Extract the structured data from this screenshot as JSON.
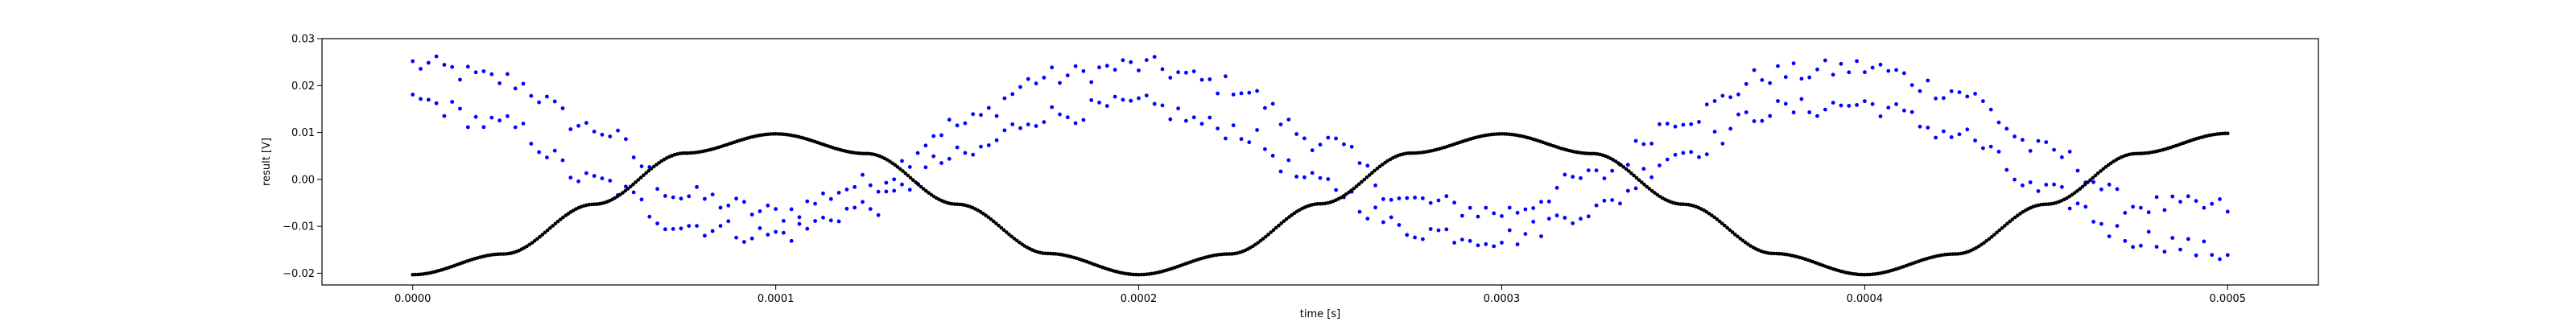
{
  "chart_data": {
    "type": "scatter",
    "title": "",
    "xlabel": "time [s]",
    "ylabel": "result [V]",
    "xlim": [
      -2.5e-05,
      0.000525
    ],
    "ylim": [
      -0.0225,
      0.03
    ],
    "x_ticks": [
      0,
      0.0001,
      0.0002,
      0.0003,
      0.0004,
      0.0005
    ],
    "x_tick_labels": [
      "0.0000",
      "0.0001",
      "0.0002",
      "0.0003",
      "0.0004",
      "0.0005"
    ],
    "y_ticks": [
      -0.02,
      -0.01,
      0.0,
      0.01,
      0.02,
      0.03
    ],
    "y_tick_labels": [
      "−0.02",
      "−0.01",
      "0.00",
      "0.01",
      "0.02",
      "0.03"
    ],
    "grid": false,
    "legend": "none",
    "series": [
      {
        "color": "#000000",
        "marker": "dense-dots",
        "x": [
          0,
          2.5e-05,
          5e-05,
          7.5e-05,
          0.0001,
          0.000125,
          0.00015,
          0.000175,
          0.0002,
          0.000225,
          0.00025,
          0.000275,
          0.0003,
          0.000325,
          0.00035,
          0.000375,
          0.0004,
          0.000425,
          0.00045,
          0.000475,
          0.0005
        ],
        "values": [
          -0.0203,
          -0.0159,
          -0.0053,
          0.0056,
          0.0097,
          0.0055,
          -0.0053,
          -0.0158,
          -0.0203,
          -0.0159,
          -0.0052,
          0.0056,
          0.0097,
          0.0055,
          -0.0053,
          -0.0158,
          -0.0203,
          -0.0159,
          -0.0053,
          0.0055,
          0.0098
        ]
      },
      {
        "color": "#0000ff",
        "marker": "dots",
        "x": [
          0,
          2.5e-05,
          5e-05,
          7.5e-05,
          0.0001,
          0.000125,
          0.00015,
          0.000175,
          0.0002,
          0.000225,
          0.00025,
          0.000275,
          0.0003,
          0.000325,
          0.00035,
          0.000375,
          0.0004,
          0.000425,
          0.00045,
          0.000475,
          0.0005
        ],
        "values": [
          0.0245,
          0.0212,
          0.0108,
          -0.0036,
          -0.0072,
          -0.001,
          0.0116,
          0.0218,
          0.0242,
          0.02,
          0.0082,
          -0.0047,
          -0.007,
          0.0005,
          0.0133,
          0.0224,
          0.0238,
          0.0188,
          0.006,
          -0.0055,
          -0.006
        ]
      },
      {
        "color": "#0000ff",
        "marker": "dots",
        "x": [
          0,
          2.5e-05,
          5e-05,
          7.5e-05,
          0.0001,
          0.000125,
          0.00015,
          0.000175,
          0.0002,
          0.000225,
          0.00025,
          0.000275,
          0.0003,
          0.000325,
          0.00035,
          0.000375,
          0.0004,
          0.000425,
          0.00045,
          0.000475,
          0.0005
        ],
        "values": [
          0.0168,
          0.0115,
          -0.0005,
          -0.0098,
          -0.0118,
          -0.006,
          0.0047,
          0.0138,
          0.0158,
          0.0108,
          -0.001,
          -0.0108,
          -0.0125,
          -0.0065,
          0.006,
          0.0148,
          0.016,
          0.0098,
          -0.003,
          -0.0125,
          -0.0158
        ]
      }
    ]
  }
}
